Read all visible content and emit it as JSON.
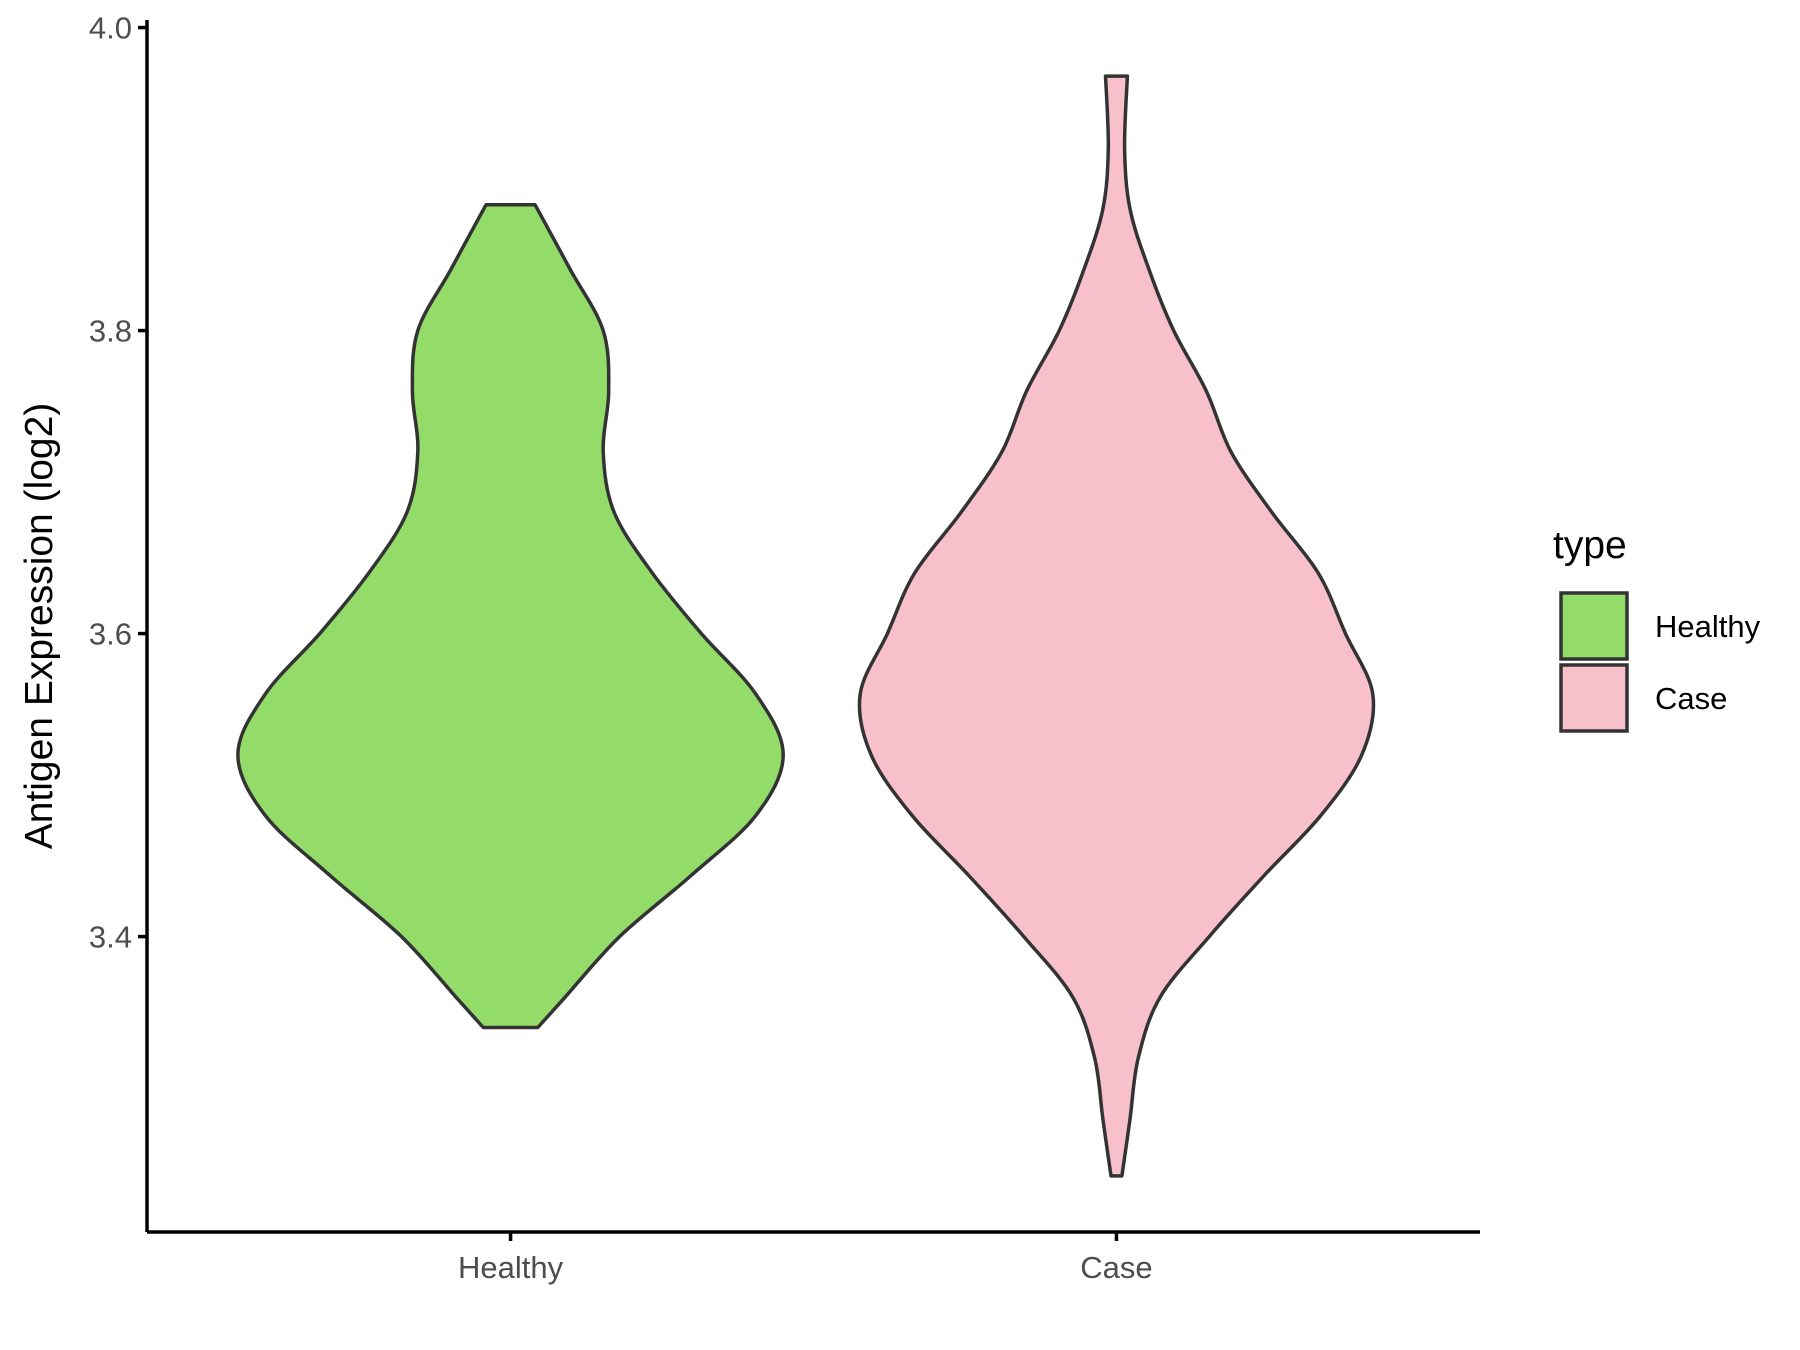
{
  "chart_data": {
    "type": "violin",
    "ylabel": "Antigen Expression (log2)",
    "xlabel": "",
    "categories": [
      "Healthy",
      "Case"
    ],
    "ylim": [
      3.205,
      4.005
    ],
    "yticks": [
      3.4,
      3.6,
      3.8,
      4.0
    ],
    "ytick_labels": [
      "3.4",
      "3.6",
      "3.8",
      "4.0"
    ],
    "legend": {
      "title": "type",
      "position": "right",
      "entries": [
        {
          "label": "Healthy",
          "color": "#93dc6a"
        },
        {
          "label": "Case",
          "color": "#f7c0cb"
        }
      ]
    },
    "series": [
      {
        "name": "Healthy",
        "color": "#93dc6a",
        "min": 3.34,
        "max": 3.883,
        "density": [
          [
            3.34,
            0.1
          ],
          [
            3.36,
            0.2
          ],
          [
            3.4,
            0.4
          ],
          [
            3.44,
            0.66
          ],
          [
            3.48,
            0.9
          ],
          [
            3.52,
            1.0
          ],
          [
            3.56,
            0.9
          ],
          [
            3.6,
            0.7
          ],
          [
            3.64,
            0.52
          ],
          [
            3.68,
            0.38
          ],
          [
            3.72,
            0.34
          ],
          [
            3.76,
            0.36
          ],
          [
            3.8,
            0.34
          ],
          [
            3.84,
            0.22
          ],
          [
            3.883,
            0.09
          ]
        ]
      },
      {
        "name": "Case",
        "color": "#f7c0cb",
        "min": 3.242,
        "max": 3.968,
        "density": [
          [
            3.242,
            0.02
          ],
          [
            3.28,
            0.05
          ],
          [
            3.32,
            0.08
          ],
          [
            3.36,
            0.16
          ],
          [
            3.4,
            0.34
          ],
          [
            3.44,
            0.54
          ],
          [
            3.48,
            0.75
          ],
          [
            3.52,
            0.9
          ],
          [
            3.56,
            0.94
          ],
          [
            3.6,
            0.84
          ],
          [
            3.64,
            0.74
          ],
          [
            3.68,
            0.57
          ],
          [
            3.72,
            0.42
          ],
          [
            3.76,
            0.33
          ],
          [
            3.8,
            0.21
          ],
          [
            3.84,
            0.12
          ],
          [
            3.88,
            0.05
          ],
          [
            3.92,
            0.03
          ],
          [
            3.968,
            0.04
          ]
        ]
      }
    ]
  }
}
